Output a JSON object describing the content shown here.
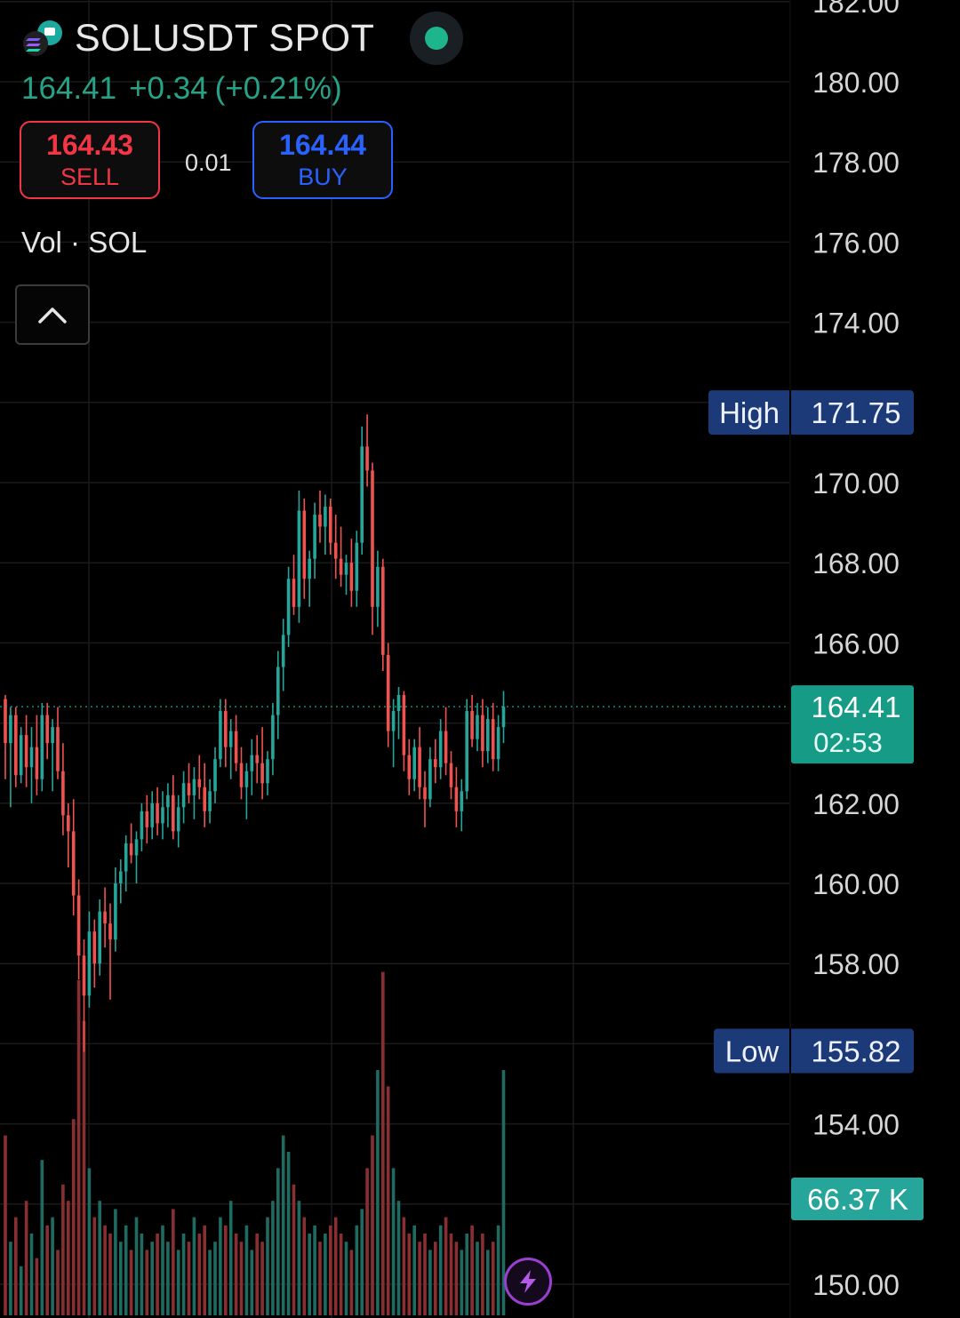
{
  "header": {
    "symbol": "SOLUSDT SPOT",
    "logo_icon": "solana-logo-icon",
    "status_color": "#1fb58c",
    "last_price": "164.41",
    "change": "+0.34",
    "change_pct": "(+0.21%)",
    "change_color": "#26a386"
  },
  "trade": {
    "sell_price": "164.43",
    "sell_label": "SELL",
    "sell_color": "#f23645",
    "spread": "0.01",
    "buy_price": "164.44",
    "buy_label": "BUY",
    "buy_color": "#2962ff"
  },
  "volume_label": "Vol · SOL",
  "collapse_icon": "chevron-up-icon",
  "flash_icon": "lightning-icon",
  "chart_data": {
    "type": "candlestick",
    "y_axis": {
      "min": 150,
      "max": 182,
      "ticks": [
        "182.00",
        "180.00",
        "178.00",
        "176.00",
        "174.00",
        "170.00",
        "168.00",
        "166.00",
        "162.00",
        "160.00",
        "158.00",
        "154.00",
        "150.00"
      ]
    },
    "high": {
      "label": "High",
      "value": "171.75"
    },
    "low": {
      "label": "Low",
      "value": "155.82"
    },
    "current": {
      "value": "164.41",
      "countdown": "02:53"
    },
    "volume_badge": "66.37 K",
    "up_color": "#26a69a",
    "down_color": "#ef5350",
    "candles": [
      [
        164.6,
        164.7,
        162.6,
        163.5
      ],
      [
        163.5,
        164.4,
        161.9,
        164.2
      ],
      [
        164.2,
        164.4,
        162.4,
        162.7
      ],
      [
        162.7,
        163.9,
        162.5,
        163.7
      ],
      [
        163.7,
        164.2,
        162.4,
        162.9
      ],
      [
        162.9,
        163.9,
        162.0,
        163.4
      ],
      [
        163.4,
        164.2,
        162.2,
        162.6
      ],
      [
        162.6,
        164.5,
        162.3,
        164.2
      ],
      [
        164.2,
        164.5,
        163.1,
        163.5
      ],
      [
        163.5,
        164.1,
        162.3,
        163.9
      ],
      [
        163.9,
        164.4,
        162.6,
        162.8
      ],
      [
        162.8,
        163.5,
        161.2,
        161.7
      ],
      [
        161.7,
        162.0,
        160.4,
        161.3
      ],
      [
        161.3,
        162.1,
        159.2,
        159.7
      ],
      [
        159.7,
        160.1,
        157.6,
        158.2
      ],
      [
        158.2,
        158.6,
        155.8,
        157.2
      ],
      [
        157.2,
        159.3,
        156.9,
        158.8
      ],
      [
        158.8,
        159.1,
        157.4,
        158.0
      ],
      [
        158.0,
        159.6,
        157.7,
        159.3
      ],
      [
        159.3,
        159.9,
        158.4,
        159.0
      ],
      [
        159.0,
        159.5,
        157.1,
        158.6
      ],
      [
        158.6,
        160.4,
        158.3,
        160.0
      ],
      [
        160.0,
        160.6,
        159.5,
        160.3
      ],
      [
        160.3,
        161.2,
        159.8,
        161.0
      ],
      [
        161.0,
        161.5,
        160.5,
        160.7
      ],
      [
        160.7,
        161.3,
        160.0,
        161.1
      ],
      [
        161.1,
        162.0,
        160.8,
        161.8
      ],
      [
        161.8,
        162.2,
        161.0,
        161.4
      ],
      [
        161.4,
        162.3,
        161.1,
        162.0
      ],
      [
        162.0,
        162.4,
        161.2,
        161.5
      ],
      [
        161.5,
        162.3,
        161.1,
        161.9
      ],
      [
        161.9,
        162.5,
        161.4,
        162.2
      ],
      [
        162.2,
        162.7,
        161.1,
        161.3
      ],
      [
        161.3,
        162.2,
        160.9,
        161.9
      ],
      [
        161.9,
        162.8,
        161.5,
        162.5
      ],
      [
        162.5,
        163.0,
        162.0,
        162.2
      ],
      [
        162.2,
        162.9,
        161.6,
        162.6
      ],
      [
        162.6,
        163.2,
        162.1,
        162.4
      ],
      [
        162.4,
        163.0,
        161.4,
        161.8
      ],
      [
        161.8,
        162.6,
        161.5,
        162.3
      ],
      [
        162.3,
        163.4,
        162.0,
        163.1
      ],
      [
        163.1,
        164.6,
        162.9,
        164.3
      ],
      [
        164.3,
        164.6,
        162.9,
        163.4
      ],
      [
        163.4,
        164.1,
        162.6,
        163.8
      ],
      [
        163.8,
        164.2,
        162.8,
        163.0
      ],
      [
        163.0,
        163.4,
        162.1,
        162.4
      ],
      [
        162.4,
        163.0,
        161.6,
        162.8
      ],
      [
        162.8,
        163.6,
        162.2,
        163.2
      ],
      [
        163.2,
        163.7,
        162.5,
        163.0
      ],
      [
        163.0,
        163.9,
        162.1,
        162.5
      ],
      [
        162.5,
        163.3,
        162.2,
        163.1
      ],
      [
        163.1,
        164.5,
        162.7,
        164.2
      ],
      [
        164.2,
        165.8,
        163.6,
        165.4
      ],
      [
        165.4,
        166.6,
        164.8,
        166.2
      ],
      [
        166.2,
        167.9,
        165.9,
        167.6
      ],
      [
        167.6,
        168.2,
        166.7,
        166.9
      ],
      [
        166.9,
        169.8,
        166.5,
        169.3
      ],
      [
        169.3,
        169.6,
        167.1,
        167.6
      ],
      [
        167.6,
        168.3,
        166.9,
        168.1
      ],
      [
        168.1,
        169.5,
        167.6,
        169.2
      ],
      [
        169.2,
        169.8,
        168.5,
        168.9
      ],
      [
        168.9,
        169.7,
        168.2,
        169.4
      ],
      [
        169.4,
        169.6,
        168.2,
        168.5
      ],
      [
        168.5,
        169.2,
        167.6,
        168.1
      ],
      [
        168.1,
        168.9,
        167.4,
        167.7
      ],
      [
        167.7,
        168.2,
        167.2,
        168.0
      ],
      [
        168.0,
        168.6,
        166.9,
        167.3
      ],
      [
        167.3,
        168.8,
        166.9,
        168.5
      ],
      [
        168.5,
        171.4,
        168.2,
        170.9
      ],
      [
        170.9,
        171.7,
        169.9,
        170.3
      ],
      [
        170.3,
        170.5,
        166.2,
        166.9
      ],
      [
        166.9,
        168.3,
        166.4,
        167.9
      ],
      [
        167.9,
        168.1,
        165.3,
        165.7
      ],
      [
        165.7,
        166.0,
        163.4,
        163.8
      ],
      [
        163.8,
        164.6,
        162.9,
        164.3
      ],
      [
        164.3,
        164.9,
        163.6,
        164.7
      ],
      [
        164.7,
        164.8,
        162.8,
        163.2
      ],
      [
        163.2,
        163.6,
        162.2,
        162.6
      ],
      [
        162.6,
        163.6,
        162.3,
        163.4
      ],
      [
        163.4,
        163.9,
        162.1,
        162.4
      ],
      [
        162.4,
        162.8,
        161.4,
        162.1
      ],
      [
        162.1,
        163.4,
        161.9,
        163.1
      ],
      [
        163.1,
        163.6,
        162.5,
        162.9
      ],
      [
        162.9,
        164.1,
        162.6,
        163.8
      ],
      [
        163.8,
        164.4,
        162.7,
        163.0
      ],
      [
        163.0,
        163.3,
        162.1,
        162.4
      ],
      [
        162.4,
        162.9,
        161.4,
        161.8
      ],
      [
        161.8,
        162.6,
        161.3,
        162.3
      ],
      [
        162.3,
        164.6,
        162.1,
        164.3
      ],
      [
        164.3,
        164.7,
        163.4,
        163.6
      ],
      [
        163.6,
        164.5,
        163.3,
        164.2
      ],
      [
        164.2,
        164.6,
        162.9,
        163.3
      ],
      [
        163.3,
        164.4,
        163.0,
        164.1
      ],
      [
        164.1,
        164.5,
        162.8,
        163.1
      ],
      [
        163.1,
        164.2,
        162.8,
        163.9
      ],
      [
        163.9,
        164.8,
        163.5,
        164.41
      ]
    ],
    "volumes": [
      22,
      9,
      12,
      6,
      14,
      10,
      7,
      19,
      11,
      12,
      8,
      16,
      14,
      24,
      41,
      36,
      18,
      12,
      14,
      11,
      10,
      13,
      9,
      11,
      8,
      12,
      10,
      8,
      9,
      10,
      11,
      9,
      13,
      8,
      10,
      9,
      12,
      10,
      11,
      8,
      9,
      12,
      11,
      14,
      10,
      9,
      11,
      8,
      10,
      9,
      12,
      14,
      18,
      22,
      20,
      16,
      14,
      12,
      10,
      11,
      9,
      10,
      11,
      12,
      10,
      9,
      8,
      11,
      13,
      18,
      22,
      30,
      42,
      28,
      18,
      14,
      12,
      10,
      11,
      9,
      10,
      8,
      9,
      11,
      12,
      10,
      9,
      8,
      10,
      11,
      9,
      10,
      8,
      9,
      11,
      30
    ]
  }
}
